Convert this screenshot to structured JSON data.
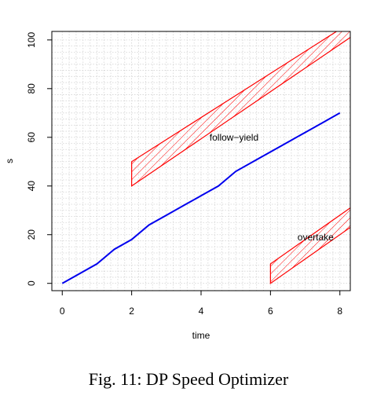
{
  "caption": "Fig. 11: DP Speed Optimizer",
  "chart_data": {
    "type": "line",
    "xlabel": "time",
    "ylabel": "s",
    "xlim": [
      -0.3,
      8.3
    ],
    "ylim": [
      -3,
      103.5
    ],
    "x_ticks": [
      0,
      2,
      4,
      6,
      8
    ],
    "y_ticks": [
      0,
      20,
      40,
      60,
      80,
      100
    ],
    "grid": true,
    "series": [
      {
        "color": "#0000ee",
        "points": [
          [
            0,
            0
          ],
          [
            1,
            8
          ],
          [
            1.5,
            14
          ],
          [
            2,
            18
          ],
          [
            2.5,
            24
          ],
          [
            3,
            28
          ],
          [
            3.5,
            32
          ],
          [
            4,
            36
          ],
          [
            4.5,
            40
          ],
          [
            5,
            46
          ],
          [
            5.5,
            50
          ],
          [
            6,
            54
          ],
          [
            6.5,
            58
          ],
          [
            7,
            62
          ],
          [
            7.5,
            66
          ],
          [
            8,
            70
          ]
        ]
      }
    ],
    "obstacles": [
      {
        "label": "follow−yield",
        "color": "#ff0000",
        "polygon": [
          [
            2,
            40
          ],
          [
            2,
            50
          ],
          [
            8.4,
            108
          ],
          [
            8.4,
            102
          ]
        ],
        "label_pos": [
          4.95,
          60
        ]
      },
      {
        "label": "overtake",
        "color": "#ff0000",
        "polygon": [
          [
            6,
            0
          ],
          [
            6,
            8
          ],
          [
            8.4,
            32
          ],
          [
            8.4,
            24
          ]
        ],
        "label_pos": [
          7.3,
          19
        ]
      }
    ]
  }
}
